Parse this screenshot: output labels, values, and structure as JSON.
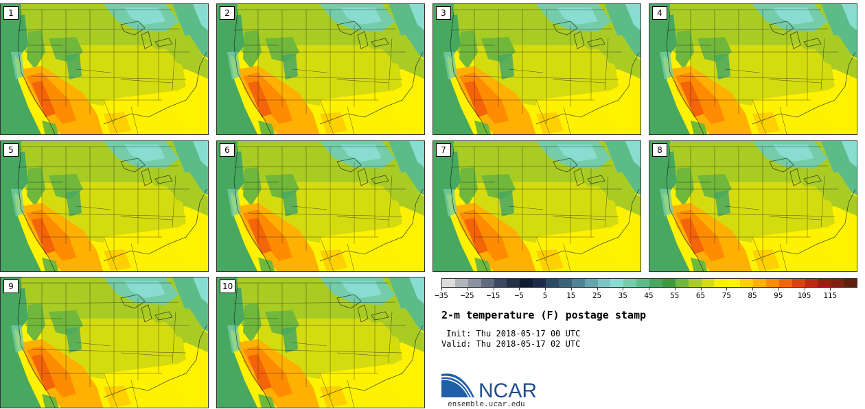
{
  "members": [
    "1",
    "2",
    "3",
    "4",
    "5",
    "6",
    "7",
    "8",
    "9",
    "10"
  ],
  "colorbar": {
    "colors": [
      "#dcdcdc",
      "#b0b4bc",
      "#8a92a0",
      "#606a80",
      "#3c4660",
      "#243048",
      "#101c34",
      "#1c2c48",
      "#2c4a66",
      "#3c6478",
      "#508494",
      "#64a4ac",
      "#7cc4c4",
      "#88dcd0",
      "#74cca8",
      "#5cbc88",
      "#48a860",
      "#3c9c3c",
      "#70b83c",
      "#a8cc24",
      "#d4dc10",
      "#f8f000",
      "#fff400",
      "#ffd000",
      "#ffb000",
      "#ff8c00",
      "#f46408",
      "#dc4010",
      "#c02810",
      "#a01c10",
      "#802010",
      "#602010"
    ],
    "tick_labels": [
      "−35",
      "−25",
      "−15",
      "−5",
      "5",
      "15",
      "25",
      "35",
      "45",
      "55",
      "65",
      "75",
      "85",
      "95",
      "105",
      "115"
    ]
  },
  "title": "2-m temperature (F) postage stamp",
  "init_line": " Init: Thu 2018-05-17 00 UTC",
  "valid_line": "Valid: Thu 2018-05-17 02 UTC",
  "logo": {
    "text": "NCAR",
    "url": "ensemble.ucar.edu"
  }
}
